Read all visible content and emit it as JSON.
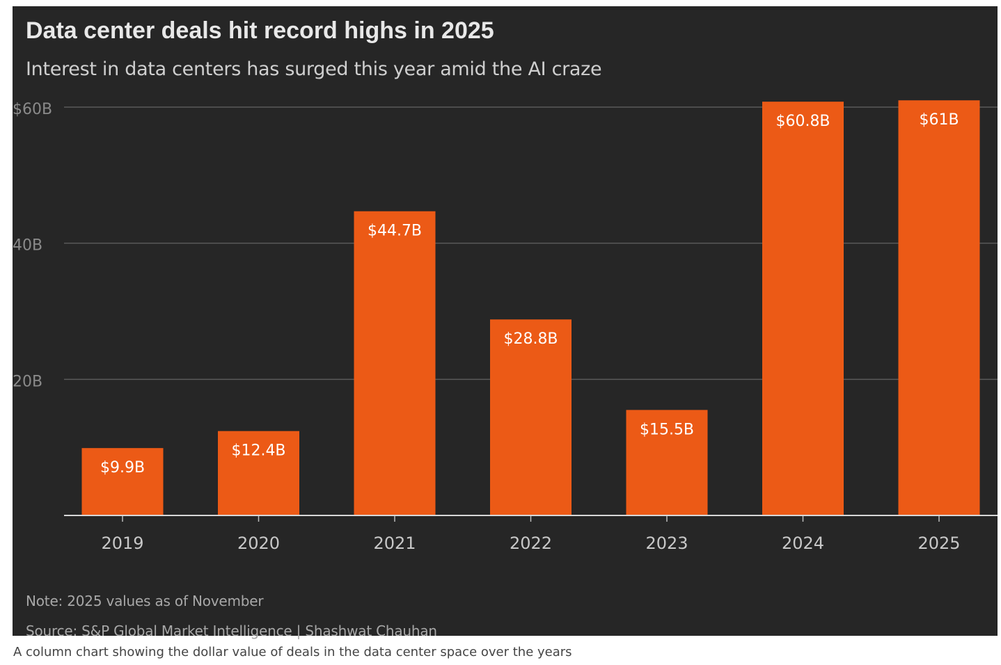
{
  "chart_data": {
    "type": "bar",
    "title": "Data center deals hit record highs in 2025",
    "subtitle": "Interest in data centers has surged this year amid the AI craze",
    "categories": [
      "2019",
      "2020",
      "2021",
      "2022",
      "2023",
      "2024",
      "2025"
    ],
    "values": [
      9.9,
      12.4,
      44.7,
      28.8,
      15.5,
      60.8,
      61
    ],
    "data_labels": [
      "$9.9B",
      "$12.4B",
      "$44.7B",
      "$28.8B",
      "$15.5B",
      "$60.8B",
      "$61B"
    ],
    "ylim": [
      0,
      60
    ],
    "yticks": [
      20,
      40,
      60
    ],
    "ytick_labels": [
      "20B",
      "40B",
      "$60B"
    ],
    "grid": true,
    "legend": "none",
    "bar_color": "#ec5a16",
    "background_color": "#262626"
  },
  "note": "Note: 2025 values as of November",
  "source": "Source: S&P Global Market Intelligence | Shashwat Chauhan",
  "caption": "A column chart showing the dollar value of deals in the data center space over the years"
}
